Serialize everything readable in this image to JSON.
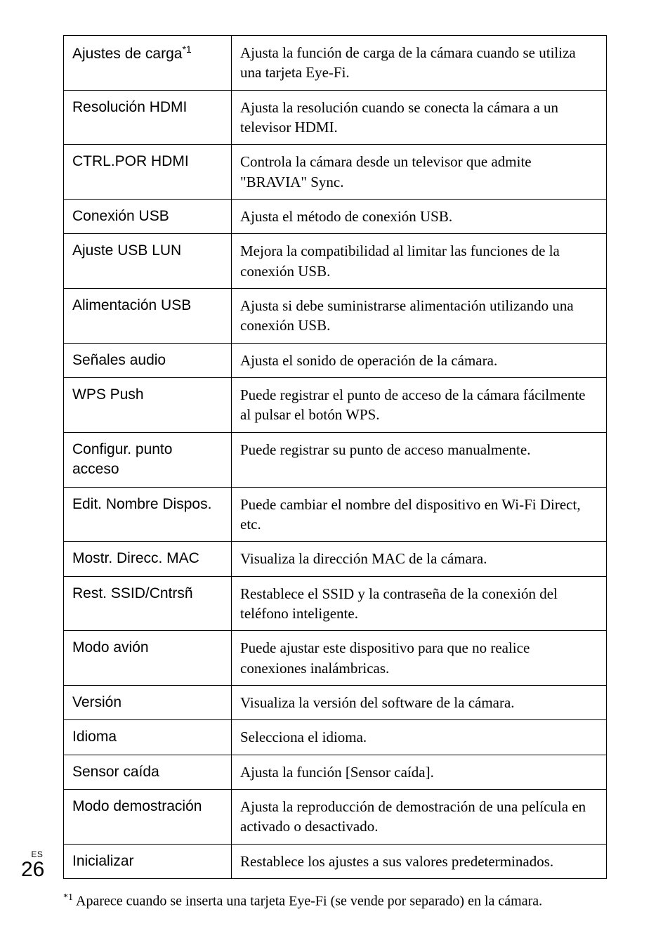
{
  "rows": [
    {
      "label": "Ajustes de carga",
      "label_sup": "*1",
      "desc": "Ajusta la función de carga de la cámara cuando se utiliza una tarjeta Eye-Fi."
    },
    {
      "label": "Resolución HDMI",
      "desc": "Ajusta la resolución cuando se conecta la cámara a un televisor HDMI."
    },
    {
      "label": "CTRL.POR HDMI",
      "desc": "Controla la cámara desde un televisor que admite \"BRAVIA\" Sync."
    },
    {
      "label": "Conexión USB",
      "desc": "Ajusta el método de conexión USB."
    },
    {
      "label": "Ajuste USB LUN",
      "desc": "Mejora la compatibilidad al limitar las funciones de la conexión USB."
    },
    {
      "label": "Alimentación USB",
      "desc": "Ajusta si debe suministrarse alimentación utilizando una conexión USB."
    },
    {
      "label": "Señales audio",
      "desc": "Ajusta el sonido de operación de la cámara."
    },
    {
      "label": "WPS Push",
      "desc": "Puede registrar el punto de acceso de la cámara fácilmente al pulsar el botón WPS."
    },
    {
      "label": "Configur. punto acceso",
      "desc": "Puede registrar su punto de acceso manualmente."
    },
    {
      "label": "Edit. Nombre Dispos.",
      "desc": "Puede cambiar el nombre del dispositivo en Wi-Fi Direct, etc."
    },
    {
      "label": "Mostr. Direcc. MAC",
      "desc": "Visualiza la dirección MAC de la cámara."
    },
    {
      "label": "Rest. SSID/Cntrsñ",
      "desc": "Restablece el SSID y la contraseña de la conexión del teléfono inteligente."
    },
    {
      "label": "Modo avión",
      "desc": "Puede ajustar este dispositivo para que no realice conexiones inalámbricas."
    },
    {
      "label": "Versión",
      "desc": "Visualiza la versión del software de la cámara."
    },
    {
      "label": "Idioma",
      "desc": "Selecciona el idioma."
    },
    {
      "label": "Sensor caída",
      "desc": "Ajusta la función [Sensor caída]."
    },
    {
      "label": "Modo demostración",
      "desc": "Ajusta la reproducción de demostración de una película en activado o desactivado."
    },
    {
      "label": "Inicializar",
      "desc": "Restablece los ajustes a sus valores predeterminados."
    }
  ],
  "footnote": {
    "marker": "*1",
    "text": "Aparece cuando se inserta una tarjeta Eye-Fi (se vende por separado) en la cámara."
  },
  "page": {
    "lang": "ES",
    "number": "26"
  }
}
